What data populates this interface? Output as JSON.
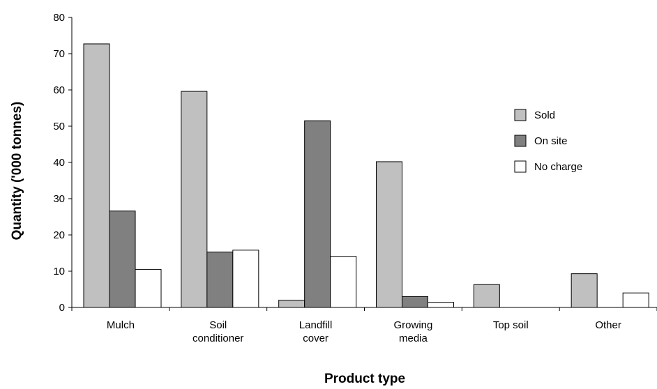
{
  "chart_data": {
    "type": "bar",
    "title": "",
    "xlabel": "Product type",
    "ylabel": "Quantity ('000 tonnes)",
    "ylim": [
      0,
      80
    ],
    "yticks": [
      0,
      10,
      20,
      30,
      40,
      50,
      60,
      70,
      80
    ],
    "grid": false,
    "legend_position": "right",
    "categories": [
      [
        "Mulch"
      ],
      [
        "Soil",
        "conditioner"
      ],
      [
        "Landfill",
        "cover"
      ],
      [
        "Growing",
        "media"
      ],
      [
        "Top soil"
      ],
      [
        "Other"
      ]
    ],
    "series": [
      {
        "name": "Sold",
        "color": "#c0c0c0",
        "values": [
          72.7,
          59.6,
          2.0,
          40.2,
          6.3,
          9.3
        ]
      },
      {
        "name": "On site",
        "color": "#808080",
        "values": [
          26.6,
          15.3,
          51.5,
          3.0,
          0,
          0
        ]
      },
      {
        "name": "No charge",
        "color": "#ffffff",
        "values": [
          10.5,
          15.8,
          14.1,
          1.4,
          0,
          4.0
        ]
      }
    ]
  }
}
